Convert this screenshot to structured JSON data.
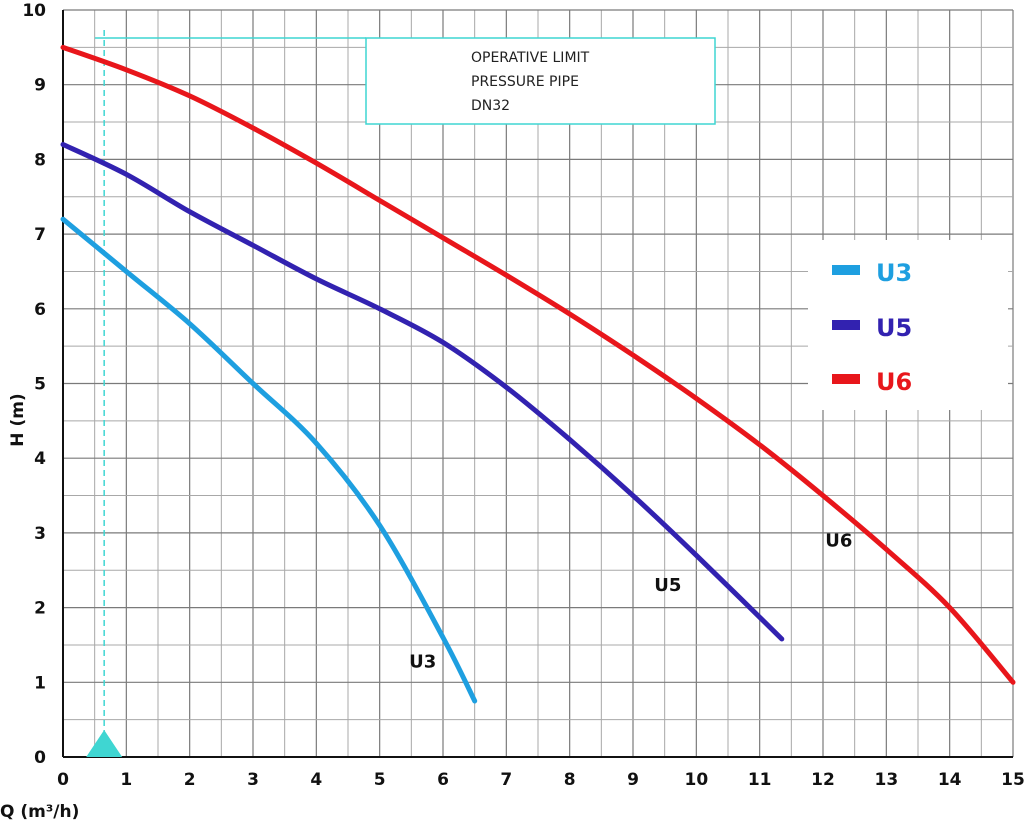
{
  "chart_data": {
    "type": "line",
    "xlabel": "Q (m³/h)",
    "ylabel": "H (m)",
    "xlim": [
      0,
      15
    ],
    "ylim": [
      0,
      10
    ],
    "x_ticks": [
      0,
      1,
      2,
      3,
      4,
      5,
      6,
      7,
      8,
      9,
      10,
      11,
      12,
      13,
      14,
      15
    ],
    "y_ticks": [
      0,
      1,
      2,
      3,
      4,
      5,
      6,
      7,
      8,
      9,
      10
    ],
    "grid": true,
    "legend_position": "right",
    "series": [
      {
        "name": "U3",
        "color": "#1e9fe0",
        "x": [
          0,
          1,
          2,
          3,
          4,
          5,
          6,
          6.5
        ],
        "y": [
          7.2,
          6.5,
          5.8,
          5.0,
          4.2,
          3.1,
          1.6,
          0.75
        ]
      },
      {
        "name": "U5",
        "color": "#3222b0",
        "x": [
          0,
          1,
          2,
          3,
          4,
          5,
          6,
          7,
          8,
          9,
          10,
          11.35
        ],
        "y": [
          8.2,
          7.8,
          7.3,
          6.85,
          6.4,
          6.0,
          5.55,
          4.95,
          4.25,
          3.5,
          2.7,
          1.58
        ]
      },
      {
        "name": "U6",
        "color": "#e8161b",
        "x": [
          0,
          1,
          2,
          3,
          4,
          5,
          6,
          7,
          8,
          9,
          10,
          11,
          12,
          13,
          14,
          15
        ],
        "y": [
          9.5,
          9.2,
          8.85,
          8.42,
          7.95,
          7.45,
          6.95,
          6.45,
          5.93,
          5.38,
          4.8,
          4.18,
          3.5,
          2.78,
          2.0,
          1.0
        ]
      }
    ],
    "curve_labels": [
      {
        "text": "U3",
        "x": 5.68,
        "y": 1.2
      },
      {
        "text": "U5",
        "x": 9.55,
        "y": 2.22
      },
      {
        "text": "U6",
        "x": 12.25,
        "y": 2.82
      }
    ],
    "annotation": {
      "lines": [
        "OPERATIVE LIMIT",
        "PRESSURE PIPE",
        "DN32"
      ],
      "limit_q": 0.65,
      "color": "#3fd6d2"
    }
  }
}
